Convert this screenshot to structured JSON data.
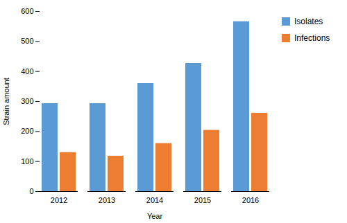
{
  "chart_data": {
    "type": "bar",
    "categories": [
      "2012",
      "2013",
      "2014",
      "2015",
      "2016"
    ],
    "series": [
      {
        "name": "Isolates",
        "color": "#5B9BD5",
        "values": [
          293,
          293,
          360,
          427,
          566
        ]
      },
      {
        "name": "Infections",
        "color": "#ED7D31",
        "values": [
          130,
          118,
          160,
          204,
          261
        ]
      }
    ],
    "xlabel": "Year",
    "ylabel": "Strain amount",
    "ylim": [
      0,
      600
    ],
    "yticks": [
      0,
      100,
      200,
      300,
      400,
      500,
      600
    ],
    "grid": false,
    "legend": "right"
  }
}
